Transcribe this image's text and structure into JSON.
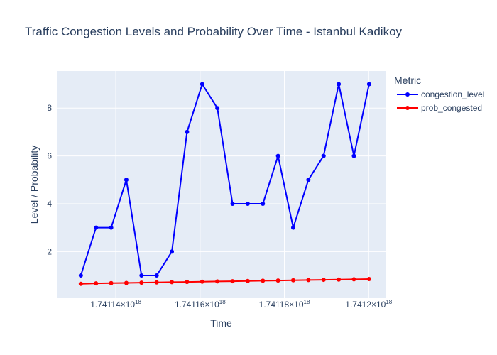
{
  "chart_data": {
    "type": "line",
    "title": "Traffic Congestion Levels and Probability Over Time - Istanbul Kadikoy",
    "xlabel": "Time",
    "ylabel": "Level / Probability",
    "x_ticks": [
      {
        "value": 1.74114e+18,
        "mantissa": "1.74114",
        "exponent": "18"
      },
      {
        "value": 1.74116e+18,
        "mantissa": "1.74116",
        "exponent": "18"
      },
      {
        "value": 1.74118e+18,
        "mantissa": "1.74118",
        "exponent": "18"
      },
      {
        "value": 1.7412e+18,
        "mantissa": "1.7412",
        "exponent": "18"
      }
    ],
    "y_ticks": [
      2,
      4,
      6,
      8
    ],
    "xlim": [
      1.741126e+18,
      1.741204e+18
    ],
    "ylim": [
      0.05,
      9.55
    ],
    "grid": true,
    "legend": {
      "title": "Metric",
      "placement": "right-top"
    },
    "x": [
      1.7411317e+18,
      1.7411353e+18,
      1.7411389e+18,
      1.7411425e+18,
      1.7411461e+18,
      1.7411497e+18,
      1.7411533e+18,
      1.7411569e+18,
      1.7411605e+18,
      1.7411641e+18,
      1.7411677e+18,
      1.7411713e+18,
      1.7411749e+18,
      1.7411785e+18,
      1.7411821e+18,
      1.7411857e+18,
      1.7411893e+18,
      1.7411929e+18,
      1.7411965e+18,
      1.7412001e+18
    ],
    "series": [
      {
        "name": "congestion_level",
        "color": "#0000ff",
        "values": [
          1,
          3,
          3,
          5,
          1,
          1,
          2,
          7,
          9,
          8,
          4,
          4,
          4,
          6,
          3,
          5,
          6,
          9,
          6,
          9
        ]
      },
      {
        "name": "prob_congested",
        "color": "#ff0000",
        "values": [
          0.65,
          0.67,
          0.68,
          0.69,
          0.7,
          0.71,
          0.72,
          0.73,
          0.74,
          0.75,
          0.76,
          0.77,
          0.78,
          0.79,
          0.8,
          0.81,
          0.82,
          0.83,
          0.84,
          0.85
        ]
      }
    ],
    "colors": {
      "plot_background": "#e5ecf6",
      "grid": "#ffffff",
      "text": "#2a3f5f"
    }
  }
}
